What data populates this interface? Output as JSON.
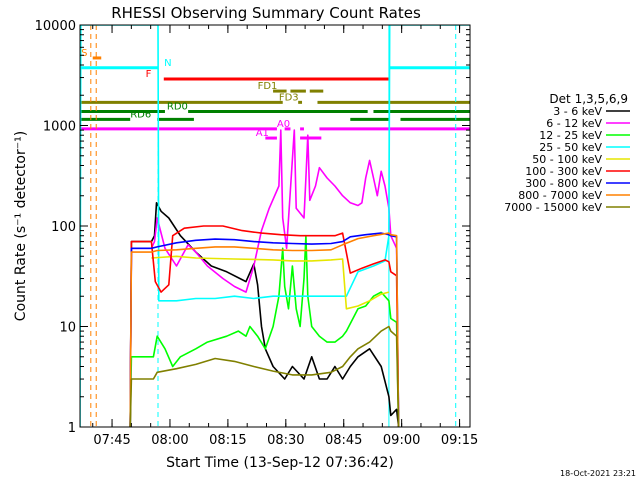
{
  "chart_data": {
    "type": "line",
    "title": "RHESSI Observing Summary Count Rates",
    "xlabel": "Start Time (13-Sep-12 07:36:42)",
    "ylabel": "Count Rate (s⁻¹ detector⁻¹)",
    "yscale": "log",
    "ylim": [
      1,
      10000
    ],
    "xlim_minutes": [
      0,
      101
    ],
    "y_ticks": [
      "1",
      "10",
      "100",
      "1000",
      "10000"
    ],
    "x_ticks": [
      {
        "label": "07:45",
        "t": 8.3
      },
      {
        "label": "08:00",
        "t": 23.3
      },
      {
        "label": "08:15",
        "t": 38.3
      },
      {
        "label": "08:30",
        "t": 53.3
      },
      {
        "label": "08:45",
        "t": 68.3
      },
      {
        "label": "09:00",
        "t": 83.3
      },
      {
        "label": "09:15",
        "t": 98.3
      }
    ],
    "legend": {
      "title": "Det 1,3,5,6,9",
      "placement": "right",
      "entries": [
        {
          "label": "3 - 6 keV",
          "color": "#000000"
        },
        {
          "label": "6 - 12 keV",
          "color": "#ff00ff"
        },
        {
          "label": "12 - 25 keV",
          "color": "#00ff00"
        },
        {
          "label": "25 - 50 keV",
          "color": "#00ffff"
        },
        {
          "label": "50 - 100 keV",
          "color": "#e6e600"
        },
        {
          "label": "100 - 300 keV",
          "color": "#ff0000"
        },
        {
          "label": "300 - 800 keV",
          "color": "#0000ff"
        },
        {
          "label": "800 - 7000 keV",
          "color": "#ff8000"
        },
        {
          "label": "7000 - 15000 keV",
          "color": "#808000"
        }
      ]
    },
    "vlines": [
      {
        "t": 2.8,
        "color": "#ff8000",
        "dashed": true
      },
      {
        "t": 4.2,
        "color": "#ff8000",
        "dashed": true
      },
      {
        "t": 20.2,
        "color": "#00ffff",
        "dashed": true
      },
      {
        "t": 80.0,
        "color": "#00ffff",
        "dashed": false
      },
      {
        "t": 97.3,
        "color": "#00ffff",
        "dashed": true
      }
    ],
    "flag_bars": [
      {
        "label": "S",
        "color": "#ff8000",
        "label_t": 0.3,
        "y_level": 4700,
        "segments": [
          [
            3.3,
            5.5
          ]
        ]
      },
      {
        "label": "N",
        "color": "#00ffff",
        "label_t": 21.8,
        "y_level": 3750,
        "segments": [
          [
            0,
            20.2
          ],
          [
            80.0,
            101
          ]
        ]
      },
      {
        "label": "F",
        "color": "#ff0000",
        "label_t": 17.0,
        "y_level": 2900,
        "segments": [
          [
            21.7,
            80.0
          ]
        ]
      },
      {
        "label": "FD1",
        "color": "#808000",
        "label_t": 46.0,
        "y_level": 2200,
        "segments": [
          [
            50.0,
            53.5
          ],
          [
            54.5,
            58.5
          ],
          [
            59.5,
            63.0
          ]
        ]
      },
      {
        "label": "FD3",
        "color": "#808000",
        "label_t": 51.5,
        "y_level": 1700,
        "segments": [
          [
            0,
            52.5
          ],
          [
            56.5,
            57.5
          ],
          [
            61.5,
            101
          ]
        ]
      },
      {
        "label": "RD0",
        "color": "#008000",
        "label_t": 22.5,
        "y_level": 1380,
        "segments": [
          [
            0,
            22.0
          ],
          [
            28.0,
            74.5
          ],
          [
            76.0,
            101
          ]
        ]
      },
      {
        "label": "RD6",
        "color": "#008000",
        "label_t": 13.0,
        "y_level": 1150,
        "segments": [
          [
            0,
            13.0
          ],
          [
            20.0,
            29.5
          ],
          [
            70.0,
            80.0
          ],
          [
            83.0,
            101
          ]
        ]
      },
      {
        "label": "A0",
        "color": "#ff00ff",
        "label_t": 51.0,
        "y_level": 925,
        "segments": [
          [
            0,
            51.0
          ],
          [
            53.0,
            54.5
          ],
          [
            57.0,
            58.0
          ],
          [
            62.0,
            101
          ]
        ]
      },
      {
        "label": "A1",
        "color": "#ff00ff",
        "label_t": 45.5,
        "y_level": 750,
        "segments": [
          [
            48.0,
            51.0
          ],
          [
            57.0,
            62.5
          ]
        ]
      }
    ],
    "series": [
      {
        "name": "3 - 6 keV",
        "color": "#000000",
        "points": [
          [
            13.0,
            1
          ],
          [
            13.3,
            70
          ],
          [
            18.5,
            70
          ],
          [
            19.3,
            80
          ],
          [
            19.8,
            170
          ],
          [
            21.0,
            140
          ],
          [
            23,
            120
          ],
          [
            26,
            80
          ],
          [
            30,
            55
          ],
          [
            34,
            40
          ],
          [
            38,
            35
          ],
          [
            43,
            28
          ],
          [
            45,
            42
          ],
          [
            46,
            26
          ],
          [
            47,
            10
          ],
          [
            48,
            6
          ],
          [
            50,
            4
          ],
          [
            53,
            3
          ],
          [
            55,
            4
          ],
          [
            58,
            3
          ],
          [
            60,
            5
          ],
          [
            62,
            3
          ],
          [
            64,
            3
          ],
          [
            66,
            4
          ],
          [
            68,
            3
          ],
          [
            70,
            4
          ],
          [
            72,
            5
          ],
          [
            75,
            6
          ],
          [
            78,
            4
          ],
          [
            80,
            2
          ],
          [
            80.5,
            1.3
          ],
          [
            82,
            1.5
          ],
          [
            82.5,
            1
          ]
        ]
      },
      {
        "name": "6 - 12 keV",
        "color": "#ff00ff",
        "points": [
          [
            13.0,
            1
          ],
          [
            13.3,
            60
          ],
          [
            18.5,
            60
          ],
          [
            19.3,
            70
          ],
          [
            20.0,
            120
          ],
          [
            22,
            60
          ],
          [
            25,
            40
          ],
          [
            28,
            65
          ],
          [
            30,
            55
          ],
          [
            33,
            40
          ],
          [
            37,
            30
          ],
          [
            40,
            25
          ],
          [
            43,
            22
          ],
          [
            45,
            40
          ],
          [
            47,
            90
          ],
          [
            49,
            150
          ],
          [
            51.5,
            250
          ],
          [
            52.0,
            900
          ],
          [
            52.5,
            120
          ],
          [
            53.5,
            60
          ],
          [
            55.5,
            900
          ],
          [
            56,
            150
          ],
          [
            58,
            120
          ],
          [
            58.5,
            300
          ],
          [
            59,
            800
          ],
          [
            59.5,
            180
          ],
          [
            61,
            250
          ],
          [
            62,
            380
          ],
          [
            64,
            300
          ],
          [
            66,
            250
          ],
          [
            68,
            200
          ],
          [
            70,
            170
          ],
          [
            72,
            160
          ],
          [
            73,
            170
          ],
          [
            74,
            300
          ],
          [
            75,
            450
          ],
          [
            76,
            300
          ],
          [
            77,
            200
          ],
          [
            78,
            350
          ],
          [
            79,
            250
          ],
          [
            80,
            150
          ],
          [
            80.5,
            80
          ],
          [
            82,
            60
          ],
          [
            82.5,
            1
          ]
        ]
      },
      {
        "name": "12 - 25 keV",
        "color": "#00ff00",
        "points": [
          [
            13.0,
            1
          ],
          [
            13.3,
            5
          ],
          [
            19,
            5
          ],
          [
            20,
            8
          ],
          [
            22,
            6
          ],
          [
            24,
            4
          ],
          [
            26,
            5
          ],
          [
            30,
            6
          ],
          [
            33,
            7
          ],
          [
            38,
            8
          ],
          [
            41,
            9
          ],
          [
            43,
            8
          ],
          [
            44,
            10
          ],
          [
            46,
            8
          ],
          [
            48,
            6
          ],
          [
            50,
            10
          ],
          [
            51.5,
            20
          ],
          [
            52.5,
            60
          ],
          [
            53,
            25
          ],
          [
            54,
            15
          ],
          [
            55,
            40
          ],
          [
            56,
            15
          ],
          [
            57,
            10
          ],
          [
            58,
            30
          ],
          [
            58.5,
            80
          ],
          [
            59,
            20
          ],
          [
            60,
            10
          ],
          [
            62,
            8
          ],
          [
            64,
            7
          ],
          [
            66,
            7
          ],
          [
            68,
            8
          ],
          [
            69,
            9
          ],
          [
            72,
            15
          ],
          [
            74,
            16
          ],
          [
            76,
            20
          ],
          [
            78,
            22
          ],
          [
            80,
            18
          ],
          [
            80.5,
            12
          ],
          [
            82,
            11
          ],
          [
            82.5,
            1
          ]
        ]
      },
      {
        "name": "25 - 50 keV",
        "color": "#00ffff",
        "points": [
          [
            0,
            1
          ],
          [
            0.2,
            10000
          ],
          [
            20.2,
            10000
          ],
          [
            20.4,
            18
          ],
          [
            25,
            18
          ],
          [
            30,
            19
          ],
          [
            35,
            19
          ],
          [
            40,
            20
          ],
          [
            45,
            19
          ],
          [
            50,
            20
          ],
          [
            55,
            20
          ],
          [
            60,
            20
          ],
          [
            65,
            20
          ],
          [
            69,
            20
          ],
          [
            72,
            35
          ],
          [
            76,
            40
          ],
          [
            79,
            45
          ],
          [
            80,
            80
          ],
          [
            80.2,
            10000
          ],
          [
            101,
            10000
          ]
        ]
      },
      {
        "name": "50 - 100 keV",
        "color": "#e6e600",
        "points": [
          [
            18.5,
            48
          ],
          [
            25,
            50
          ],
          [
            30,
            48
          ],
          [
            40,
            47
          ],
          [
            50,
            46
          ],
          [
            55,
            45
          ],
          [
            60,
            45
          ],
          [
            65,
            46
          ],
          [
            68,
            47
          ],
          [
            69,
            15
          ],
          [
            72,
            16
          ],
          [
            75,
            18
          ],
          [
            78,
            21
          ],
          [
            80,
            22
          ]
        ]
      },
      {
        "name": "100 - 300 keV",
        "color": "#ff0000",
        "points": [
          [
            13.0,
            1
          ],
          [
            13.3,
            70
          ],
          [
            18.5,
            70
          ],
          [
            19.5,
            28
          ],
          [
            21,
            22
          ],
          [
            23,
            26
          ],
          [
            24,
            80
          ],
          [
            27,
            95
          ],
          [
            32,
            100
          ],
          [
            37,
            100
          ],
          [
            42,
            90
          ],
          [
            47,
            85
          ],
          [
            52,
            82
          ],
          [
            57,
            80
          ],
          [
            62,
            80
          ],
          [
            66,
            80
          ],
          [
            68,
            85
          ],
          [
            70,
            34
          ],
          [
            73,
            38
          ],
          [
            76,
            42
          ],
          [
            79,
            46
          ],
          [
            80,
            44
          ],
          [
            80.5,
            35
          ],
          [
            82,
            32
          ],
          [
            82.5,
            1
          ]
        ]
      },
      {
        "name": "300 - 800 keV",
        "color": "#0000ff",
        "points": [
          [
            13.0,
            1
          ],
          [
            13.3,
            60
          ],
          [
            18.5,
            60
          ],
          [
            20,
            62
          ],
          [
            25,
            68
          ],
          [
            30,
            72
          ],
          [
            35,
            74
          ],
          [
            40,
            73
          ],
          [
            45,
            70
          ],
          [
            50,
            68
          ],
          [
            55,
            67
          ],
          [
            60,
            66
          ],
          [
            65,
            67
          ],
          [
            68,
            70
          ],
          [
            70,
            78
          ],
          [
            74,
            82
          ],
          [
            78,
            85
          ],
          [
            80,
            82
          ],
          [
            80.5,
            80
          ],
          [
            82,
            78
          ],
          [
            82.5,
            1
          ]
        ]
      },
      {
        "name": "800 - 7000 keV",
        "color": "#ff8000",
        "points": [
          [
            13.0,
            1
          ],
          [
            13.3,
            55
          ],
          [
            18.5,
            55
          ],
          [
            20,
            57
          ],
          [
            25,
            58
          ],
          [
            30,
            60
          ],
          [
            35,
            62
          ],
          [
            40,
            62
          ],
          [
            45,
            60
          ],
          [
            50,
            58
          ],
          [
            55,
            57
          ],
          [
            60,
            57
          ],
          [
            65,
            58
          ],
          [
            68,
            65
          ],
          [
            72,
            75
          ],
          [
            76,
            80
          ],
          [
            80,
            85
          ],
          [
            80.5,
            82
          ],
          [
            82,
            80
          ],
          [
            82.5,
            1
          ]
        ]
      },
      {
        "name": "7000 - 15000 keV",
        "color": "#808000",
        "points": [
          [
            13.0,
            1
          ],
          [
            13.3,
            3
          ],
          [
            19,
            3
          ],
          [
            20,
            3.5
          ],
          [
            25,
            3.8
          ],
          [
            30,
            4.2
          ],
          [
            35,
            4.8
          ],
          [
            40,
            4.5
          ],
          [
            45,
            4
          ],
          [
            50,
            3.6
          ],
          [
            55,
            3.3
          ],
          [
            60,
            3.3
          ],
          [
            65,
            3.5
          ],
          [
            68,
            4
          ],
          [
            70,
            5
          ],
          [
            72,
            6
          ],
          [
            75,
            7
          ],
          [
            78,
            9
          ],
          [
            80,
            10
          ],
          [
            80.5,
            9
          ],
          [
            82,
            8
          ],
          [
            82.5,
            1
          ]
        ]
      }
    ]
  },
  "footer": {
    "timestamp": "18-Oct-2021 23:21"
  }
}
